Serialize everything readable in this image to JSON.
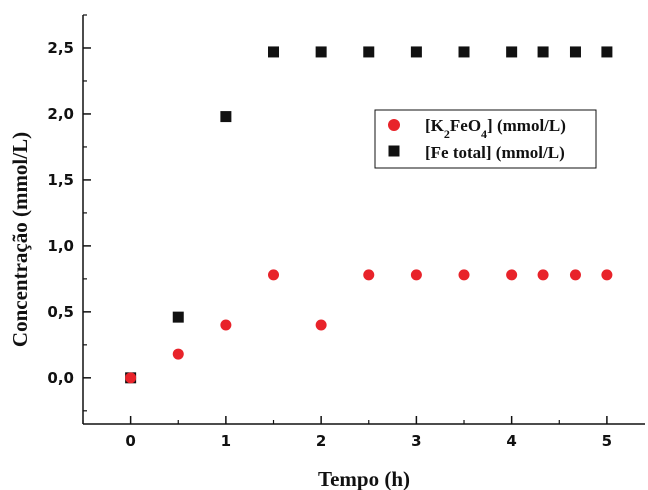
{
  "chart_data": {
    "type": "scatter",
    "xlabel": "Tempo (h)",
    "ylabel": "Concentração (mmol/L)",
    "xlim": [
      -0.5,
      5.4
    ],
    "ylim": [
      -0.35,
      2.75
    ],
    "x_ticks": [
      0,
      1,
      2,
      3,
      4,
      5
    ],
    "x_tick_labels": [
      "0",
      "1",
      "2",
      "3",
      "4",
      "5"
    ],
    "y_ticks": [
      0.0,
      0.5,
      1.0,
      1.5,
      2.0,
      2.5
    ],
    "y_tick_labels": [
      "0,0",
      "0,5",
      "1,0",
      "1,5",
      "2,0",
      "2,5"
    ],
    "grid": false,
    "legend_position": "top-right",
    "series": [
      {
        "key": "k2feo4",
        "marker": "circle",
        "color": "#e8232a",
        "legend": {
          "prefix": "[K",
          "sub1": "2",
          "mid": "FeO",
          "sub2": "4",
          "suffix": "] (mmol/L)"
        },
        "points": [
          [
            0,
            0.0
          ],
          [
            0.5,
            0.18
          ],
          [
            1,
            0.4
          ],
          [
            1.5,
            0.78
          ],
          [
            2,
            0.4
          ],
          [
            2.5,
            0.78
          ],
          [
            3,
            0.78
          ],
          [
            3.5,
            0.78
          ],
          [
            4,
            0.78
          ],
          [
            4.33,
            0.78
          ],
          [
            4.67,
            0.78
          ],
          [
            5,
            0.78
          ]
        ]
      },
      {
        "key": "fe_total",
        "marker": "square",
        "color": "#111111",
        "legend": {
          "text": "[Fe total] (mmol/L)"
        },
        "points": [
          [
            0,
            0.0
          ],
          [
            0.5,
            0.46
          ],
          [
            1,
            1.98
          ],
          [
            1.5,
            2.47
          ],
          [
            2,
            2.47
          ],
          [
            2.5,
            2.47
          ],
          [
            3,
            2.47
          ],
          [
            3.5,
            2.47
          ],
          [
            4,
            2.47
          ],
          [
            4.33,
            2.47
          ],
          [
            4.67,
            2.47
          ],
          [
            5,
            2.47
          ]
        ]
      }
    ]
  }
}
